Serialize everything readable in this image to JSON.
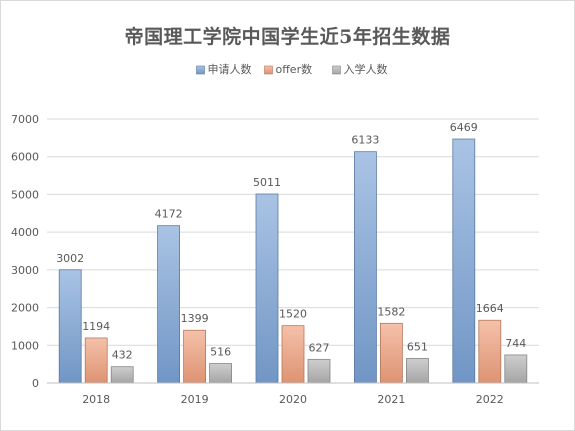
{
  "chart_data": {
    "type": "bar",
    "title": "帝国理工学院中国学生近5年招生数据",
    "categories": [
      "2018",
      "2019",
      "2020",
      "2021",
      "2022"
    ],
    "series": [
      {
        "name": "申请人数",
        "values": [
          3002,
          4172,
          5011,
          6133,
          6469
        ],
        "color": "#7ba3d6"
      },
      {
        "name": "offer数",
        "values": [
          1194,
          1399,
          1520,
          1582,
          1664
        ],
        "color": "#f0a07c"
      },
      {
        "name": "入学人数",
        "values": [
          432,
          516,
          627,
          651,
          744
        ],
        "color": "#b3b3b3"
      }
    ],
    "ylim": [
      0,
      7000
    ],
    "yticks": [
      0,
      1000,
      2000,
      3000,
      4000,
      5000,
      6000,
      7000
    ],
    "grid": true,
    "legend_position": "top",
    "data_labels": true
  }
}
